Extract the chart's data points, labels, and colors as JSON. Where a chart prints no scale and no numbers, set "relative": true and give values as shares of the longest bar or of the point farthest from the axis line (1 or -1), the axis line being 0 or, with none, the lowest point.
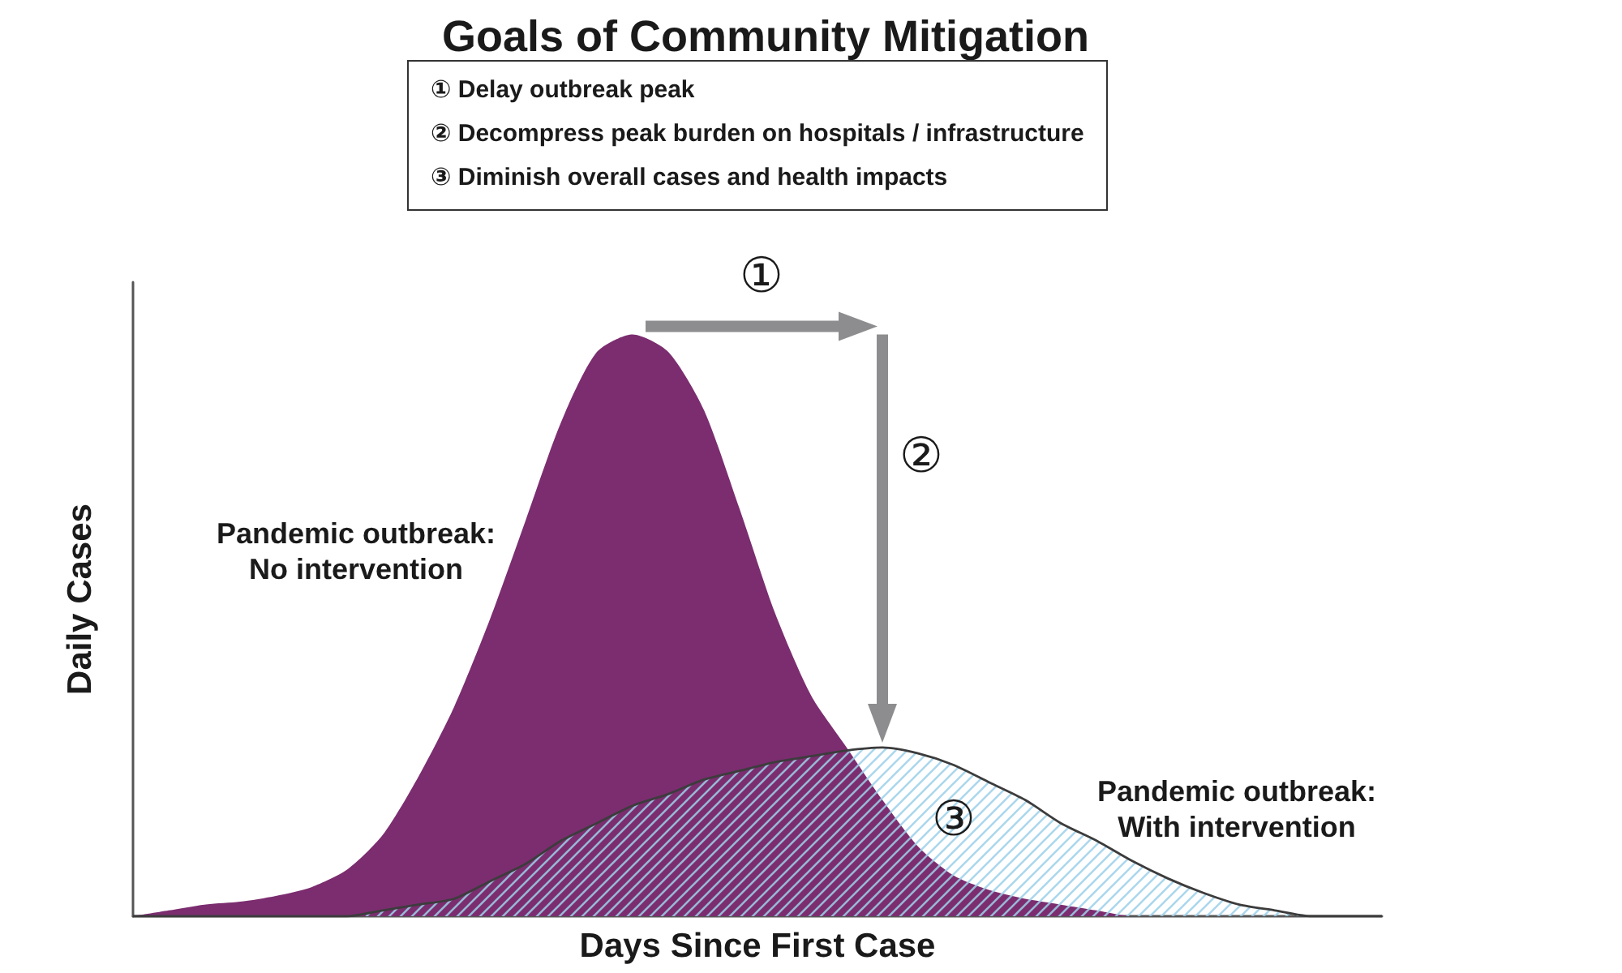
{
  "chart_data": {
    "type": "area",
    "title": "Goals of Community Mitigation",
    "xlabel": "Days Since First Case",
    "ylabel": "Daily Cases",
    "relative": true,
    "tick_labels": false,
    "annotations": [
      "① Delay outbreak peak",
      "② Decompress peak burden on hospitals / infrastructure",
      "③ Diminish overall cases and health impacts",
      "①",
      "②",
      "③"
    ],
    "categories": [
      null,
      null,
      null,
      null,
      null,
      null,
      null,
      null,
      null,
      null,
      null,
      null,
      null,
      null,
      null,
      null,
      null,
      null,
      null,
      null,
      null,
      null,
      null,
      null,
      null,
      null,
      null,
      null,
      null,
      null,
      null,
      null,
      null,
      null,
      null,
      null
    ],
    "series": [
      {
        "name": "Pandemic outbreak: No intervention",
        "color": "#7b2d6f",
        "values": [
          0,
          0.01,
          0.02,
          0.025,
          0.035,
          0.05,
          0.08,
          0.14,
          0.24,
          0.36,
          0.51,
          0.68,
          0.85,
          0.97,
          1,
          0.97,
          0.87,
          0.7,
          0.52,
          0.38,
          0.29,
          0.2,
          0.12,
          0.07,
          0.045,
          0.03,
          0.02,
          0.01,
          0,
          0,
          0,
          0,
          0,
          0,
          0,
          0
        ]
      },
      {
        "name": "Pandemic outbreak: With intervention",
        "color": "#9dd0ea",
        "values": [
          0,
          0,
          0,
          0,
          0,
          0,
          0,
          0.01,
          0.02,
          0.03,
          0.06,
          0.09,
          0.13,
          0.16,
          0.19,
          0.21,
          0.235,
          0.25,
          0.265,
          0.275,
          0.285,
          0.29,
          0.28,
          0.26,
          0.23,
          0.2,
          0.16,
          0.13,
          0.095,
          0.065,
          0.04,
          0.02,
          0.01,
          0,
          0,
          0
        ]
      }
    ]
  }
}
